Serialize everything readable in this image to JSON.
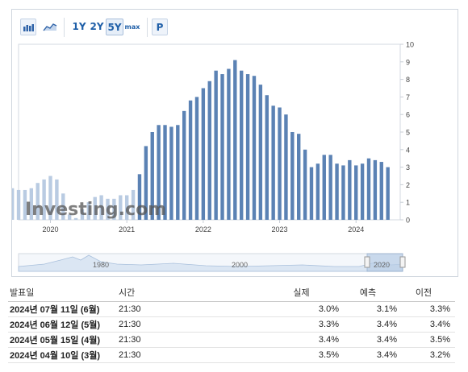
{
  "toolbar": {
    "bar_chart_icon": "bar-chart-icon",
    "line_chart_icon": "line-chart-icon",
    "ranges": [
      "1Y",
      "2Y",
      "5Y",
      "max"
    ],
    "selected_range": "5Y",
    "p_label": "P"
  },
  "chart_data": {
    "type": "bar",
    "x_tick_labels": [
      "2020",
      "2021",
      "2022",
      "2023",
      "2024"
    ],
    "y_ticks": [
      0,
      1,
      2,
      3,
      4,
      5,
      6,
      7,
      8,
      9,
      10
    ],
    "ylim": [
      0,
      10
    ],
    "y_axis_position": "right",
    "grid": false,
    "watermark": "Investing.com",
    "series": [
      {
        "x": [
          "2019-07",
          "2019-08",
          "2019-09",
          "2019-10",
          "2019-11",
          "2019-12",
          "2020-01",
          "2020-02",
          "2020-03",
          "2020-04",
          "2020-05",
          "2020-06",
          "2020-07",
          "2020-08",
          "2020-09",
          "2020-10",
          "2020-11",
          "2020-12",
          "2021-01",
          "2021-02",
          "2021-03",
          "2021-04",
          "2021-05",
          "2021-06",
          "2021-07",
          "2021-08",
          "2021-09",
          "2021-10",
          "2021-11",
          "2021-12",
          "2022-01",
          "2022-02",
          "2022-03",
          "2022-04",
          "2022-05",
          "2022-06",
          "2022-07",
          "2022-08",
          "2022-09",
          "2022-10",
          "2022-11",
          "2022-12",
          "2023-01",
          "2023-02",
          "2023-03",
          "2023-04",
          "2023-05",
          "2023-06",
          "2023-07",
          "2023-08",
          "2023-09",
          "2023-10",
          "2023-11",
          "2023-12",
          "2024-01",
          "2024-02",
          "2024-03",
          "2024-04",
          "2024-05",
          "2024-06"
        ],
        "values": [
          1.8,
          1.7,
          1.7,
          1.8,
          2.1,
          2.3,
          2.5,
          2.3,
          1.5,
          0.3,
          0.1,
          0.6,
          1.0,
          1.3,
          1.4,
          1.2,
          1.2,
          1.4,
          1.4,
          1.7,
          2.6,
          4.2,
          5.0,
          5.4,
          5.4,
          5.3,
          5.4,
          6.2,
          6.8,
          7.0,
          7.5,
          7.9,
          8.5,
          8.3,
          8.6,
          9.1,
          8.5,
          8.3,
          8.2,
          7.7,
          7.1,
          6.5,
          6.4,
          6.0,
          5.0,
          4.9,
          4.0,
          3.0,
          3.2,
          3.7,
          3.7,
          3.2,
          3.1,
          3.4,
          3.1,
          3.2,
          3.5,
          3.4,
          3.3,
          3.0
        ]
      }
    ],
    "navigator": {
      "tick_labels": [
        "1980",
        "2000",
        "2020"
      ]
    }
  },
  "table": {
    "headers": {
      "date": "발표일",
      "time": "시간",
      "actual": "실제",
      "forecast": "예측",
      "previous": "이전"
    },
    "rows": [
      {
        "date": "2024년 07월 11일 (6월)",
        "time": "21:30",
        "actual": "3.0%",
        "actual_color": "blue",
        "forecast": "3.1%",
        "previous": "3.3%"
      },
      {
        "date": "2024년 06월 12일 (5월)",
        "time": "21:30",
        "actual": "3.3%",
        "actual_color": "blue",
        "forecast": "3.4%",
        "previous": "3.4%"
      },
      {
        "date": "2024년 05월 15일 (4월)",
        "time": "21:30",
        "actual": "3.4%",
        "actual_color": "black",
        "forecast": "3.4%",
        "previous": "3.5%"
      },
      {
        "date": "2024년 04월 10일 (3월)",
        "time": "21:30",
        "actual": "3.5%",
        "actual_color": "red",
        "forecast": "3.4%",
        "previous": "3.2%"
      }
    ]
  },
  "colors": {
    "bar": "#5b82b4",
    "bar_faded": "#b9cbe2",
    "actual_blue": "#1e90e8",
    "actual_red": "#e0302c"
  }
}
